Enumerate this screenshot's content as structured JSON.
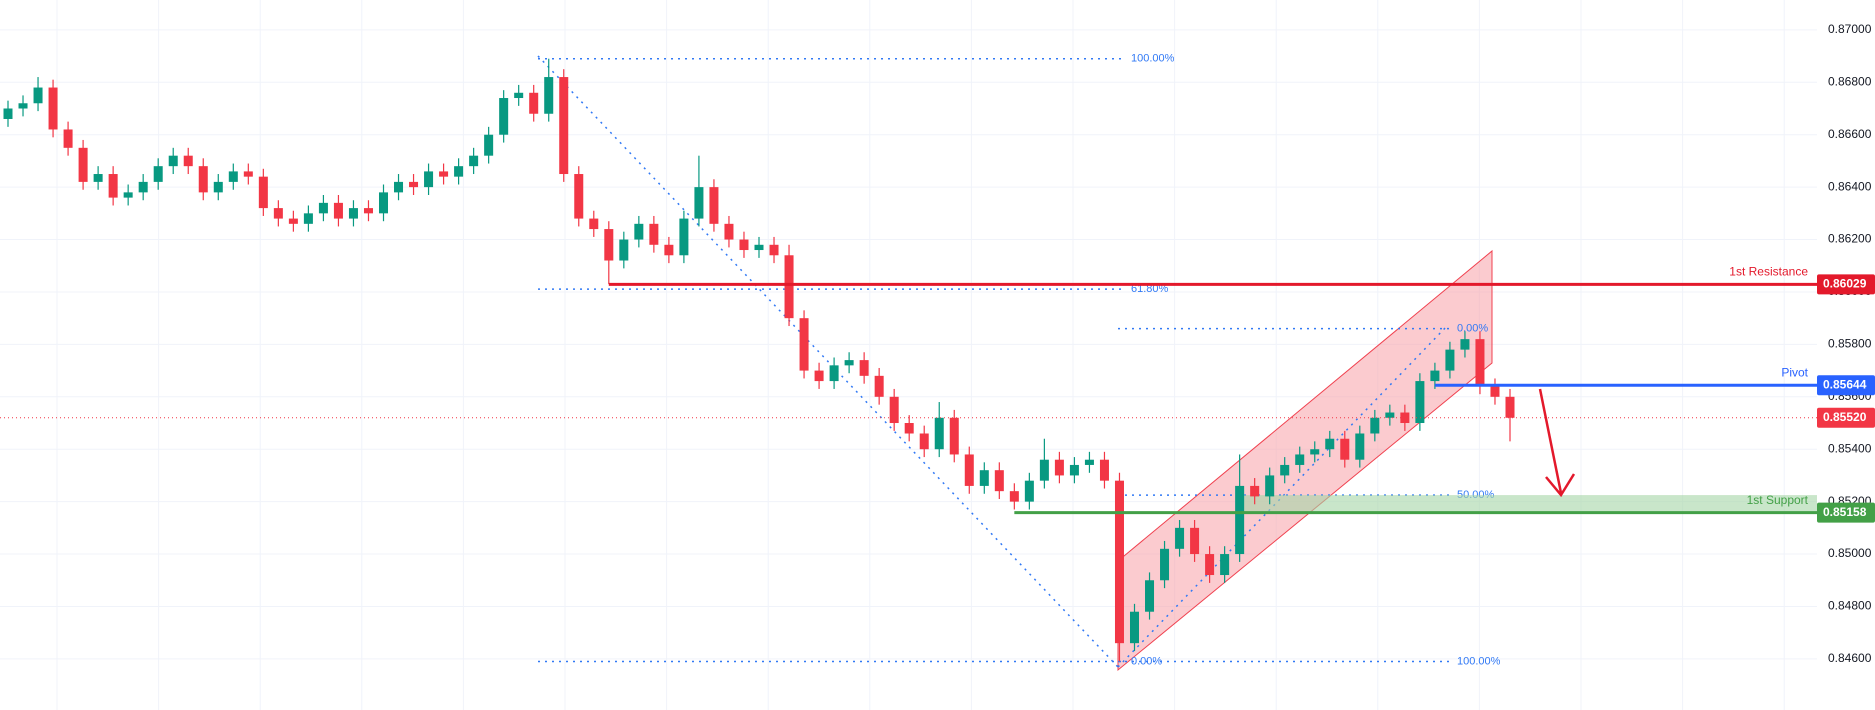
{
  "chart_data": {
    "type": "candlestick",
    "up_color": "#089981",
    "down_color": "#f23645",
    "ylim": [
      0.84405,
      0.87114
    ],
    "yticks": [
      {
        "value": 0.846,
        "label": "0.84600"
      },
      {
        "value": 0.848,
        "label": "0.84800"
      },
      {
        "value": 0.85,
        "label": "0.85000"
      },
      {
        "value": 0.852,
        "label": "0.85200"
      },
      {
        "value": 0.854,
        "label": "0.85400"
      },
      {
        "value": 0.856,
        "label": "0.85600"
      },
      {
        "value": 0.858,
        "label": "0.85800"
      },
      {
        "value": 0.86,
        "label": "0.86000"
      },
      {
        "value": 0.862,
        "label": "0.86200"
      },
      {
        "value": 0.864,
        "label": "0.86400"
      },
      {
        "value": 0.866,
        "label": "0.86600"
      },
      {
        "value": 0.868,
        "label": "0.86800"
      },
      {
        "value": 0.87,
        "label": "0.87000"
      }
    ],
    "grid": true,
    "open": [
      0.8666,
      0.867,
      0.8672,
      0.8678,
      0.8662,
      0.8655,
      0.8642,
      0.8645,
      0.8636,
      0.8638,
      0.8642,
      0.8648,
      0.8652,
      0.8648,
      0.8638,
      0.8642,
      0.8646,
      0.8644,
      0.8632,
      0.8628,
      0.8626,
      0.863,
      0.8634,
      0.8628,
      0.8632,
      0.863,
      0.8638,
      0.8642,
      0.864,
      0.8646,
      0.8644,
      0.8648,
      0.8652,
      0.866,
      0.8674,
      0.8676,
      0.8668,
      0.8682,
      0.8645,
      0.8628,
      0.8624,
      0.8612,
      0.862,
      0.8626,
      0.8618,
      0.8614,
      0.8628,
      0.864,
      0.8626,
      0.862,
      0.8616,
      0.8618,
      0.8614,
      0.859,
      0.857,
      0.8566,
      0.8572,
      0.8574,
      0.8568,
      0.856,
      0.855,
      0.8546,
      0.854,
      0.8552,
      0.8538,
      0.8526,
      0.8532,
      0.8524,
      0.852,
      0.8528,
      0.8536,
      0.853,
      0.8534,
      0.8536,
      0.8528,
      0.8466,
      0.8478,
      0.849,
      0.8502,
      0.851,
      0.85,
      0.8492,
      0.85,
      0.8526,
      0.8522,
      0.853,
      0.8534,
      0.8538,
      0.854,
      0.8544,
      0.8536,
      0.8546,
      0.8552,
      0.8554,
      0.855,
      0.8566,
      0.857,
      0.8578,
      0.8582,
      0.8564,
      0.856
    ],
    "high": [
      0.8673,
      0.8675,
      0.8682,
      0.8681,
      0.8665,
      0.8658,
      0.8648,
      0.8648,
      0.8641,
      0.8645,
      0.8651,
      0.8655,
      0.8655,
      0.8651,
      0.8645,
      0.8649,
      0.8649,
      0.8647,
      0.8635,
      0.8631,
      0.8633,
      0.8637,
      0.8637,
      0.8635,
      0.8635,
      0.8641,
      0.8645,
      0.8645,
      0.8649,
      0.8649,
      0.8651,
      0.8655,
      0.8663,
      0.8677,
      0.8679,
      0.8679,
      0.8689,
      0.8685,
      0.8648,
      0.8631,
      0.8627,
      0.8623,
      0.8629,
      0.8629,
      0.8621,
      0.8631,
      0.8652,
      0.8643,
      0.8629,
      0.8623,
      0.8621,
      0.8621,
      0.8618,
      0.8593,
      0.8573,
      0.8575,
      0.8577,
      0.8577,
      0.8571,
      0.8563,
      0.8553,
      0.8549,
      0.8558,
      0.8555,
      0.8541,
      0.8535,
      0.8535,
      0.8527,
      0.8531,
      0.8544,
      0.8539,
      0.8537,
      0.8539,
      0.8539,
      0.8531,
      0.8481,
      0.8493,
      0.8505,
      0.8513,
      0.8513,
      0.8503,
      0.8503,
      0.8538,
      0.8529,
      0.8533,
      0.8537,
      0.8541,
      0.8543,
      0.8547,
      0.8547,
      0.8549,
      0.8555,
      0.8557,
      0.8557,
      0.8569,
      0.8573,
      0.8581,
      0.8585,
      0.8585,
      0.8567,
      0.8563
    ],
    "low": [
      0.8663,
      0.8667,
      0.8669,
      0.8659,
      0.8652,
      0.8639,
      0.8639,
      0.8633,
      0.8633,
      0.8635,
      0.8639,
      0.8645,
      0.8645,
      0.8635,
      0.8635,
      0.8639,
      0.8641,
      0.8629,
      0.8625,
      0.8623,
      0.8623,
      0.8627,
      0.8625,
      0.8625,
      0.8627,
      0.8627,
      0.8635,
      0.8637,
      0.8637,
      0.8641,
      0.8641,
      0.8645,
      0.8649,
      0.8657,
      0.8671,
      0.8665,
      0.8665,
      0.8642,
      0.8625,
      0.8621,
      0.8603,
      0.8609,
      0.8617,
      0.8615,
      0.8611,
      0.8611,
      0.8625,
      0.8623,
      0.8617,
      0.8613,
      0.8613,
      0.8611,
      0.8587,
      0.8567,
      0.8563,
      0.8563,
      0.8569,
      0.8565,
      0.8557,
      0.8547,
      0.8543,
      0.8537,
      0.8537,
      0.8535,
      0.8523,
      0.8523,
      0.8521,
      0.8517,
      0.8517,
      0.8525,
      0.8527,
      0.8527,
      0.8531,
      0.8525,
      0.8459,
      0.8463,
      0.8475,
      0.8487,
      0.8499,
      0.8497,
      0.8489,
      0.8489,
      0.8497,
      0.8519,
      0.8519,
      0.8527,
      0.8531,
      0.8535,
      0.8537,
      0.8533,
      0.8533,
      0.8543,
      0.8549,
      0.8547,
      0.8547,
      0.8563,
      0.8567,
      0.8575,
      0.8561,
      0.8557,
      0.8543
    ],
    "close": [
      0.867,
      0.8672,
      0.8678,
      0.8662,
      0.8655,
      0.8642,
      0.8645,
      0.8636,
      0.8638,
      0.8642,
      0.8648,
      0.8652,
      0.8648,
      0.8638,
      0.8642,
      0.8646,
      0.8644,
      0.8632,
      0.8628,
      0.8626,
      0.863,
      0.8634,
      0.8628,
      0.8632,
      0.863,
      0.8638,
      0.8642,
      0.864,
      0.8646,
      0.8644,
      0.8648,
      0.8652,
      0.866,
      0.8674,
      0.8676,
      0.8668,
      0.8682,
      0.8645,
      0.8628,
      0.8624,
      0.8612,
      0.862,
      0.8626,
      0.8618,
      0.8614,
      0.8628,
      0.864,
      0.8626,
      0.862,
      0.8616,
      0.8618,
      0.8614,
      0.859,
      0.857,
      0.8566,
      0.8572,
      0.8574,
      0.8568,
      0.856,
      0.855,
      0.8546,
      0.854,
      0.8552,
      0.8538,
      0.8526,
      0.8532,
      0.8524,
      0.852,
      0.8528,
      0.8536,
      0.853,
      0.8534,
      0.8536,
      0.8528,
      0.8466,
      0.8478,
      0.849,
      0.8502,
      0.851,
      0.85,
      0.8492,
      0.85,
      0.8526,
      0.8522,
      0.853,
      0.8534,
      0.8538,
      0.854,
      0.8544,
      0.8536,
      0.8546,
      0.8552,
      0.8554,
      0.855,
      0.8566,
      0.857,
      0.8578,
      0.8582,
      0.8564,
      0.856,
      0.8552
    ],
    "fibs": [
      {
        "color": "#3179f5",
        "levels": [
          {
            "price": 0.8689,
            "label": "100.00%"
          },
          {
            "price": 0.86011,
            "label": "61.80%"
          },
          {
            "price": 0.8459,
            "label": "0.00%"
          }
        ]
      },
      {
        "color": "#3179f5",
        "levels": [
          {
            "price": 0.8586,
            "label": "0.00%"
          },
          {
            "price": 0.85225,
            "label": "50.00%"
          },
          {
            "price": 0.8459,
            "label": "100.00%"
          }
        ]
      }
    ],
    "levels": [
      {
        "name": "1st Resistance",
        "price": 0.86029,
        "label": "0.86029",
        "color": "#e3192b"
      },
      {
        "name": "Pivot",
        "price": 0.85644,
        "label": "0.85644",
        "color": "#2962ff"
      },
      {
        "name": "1st Support",
        "price": 0.85158,
        "label": "0.85158",
        "color": "#43a047"
      }
    ],
    "current_price": {
      "price": 0.8552,
      "label": "0.85520",
      "color": "#f23645"
    }
  }
}
